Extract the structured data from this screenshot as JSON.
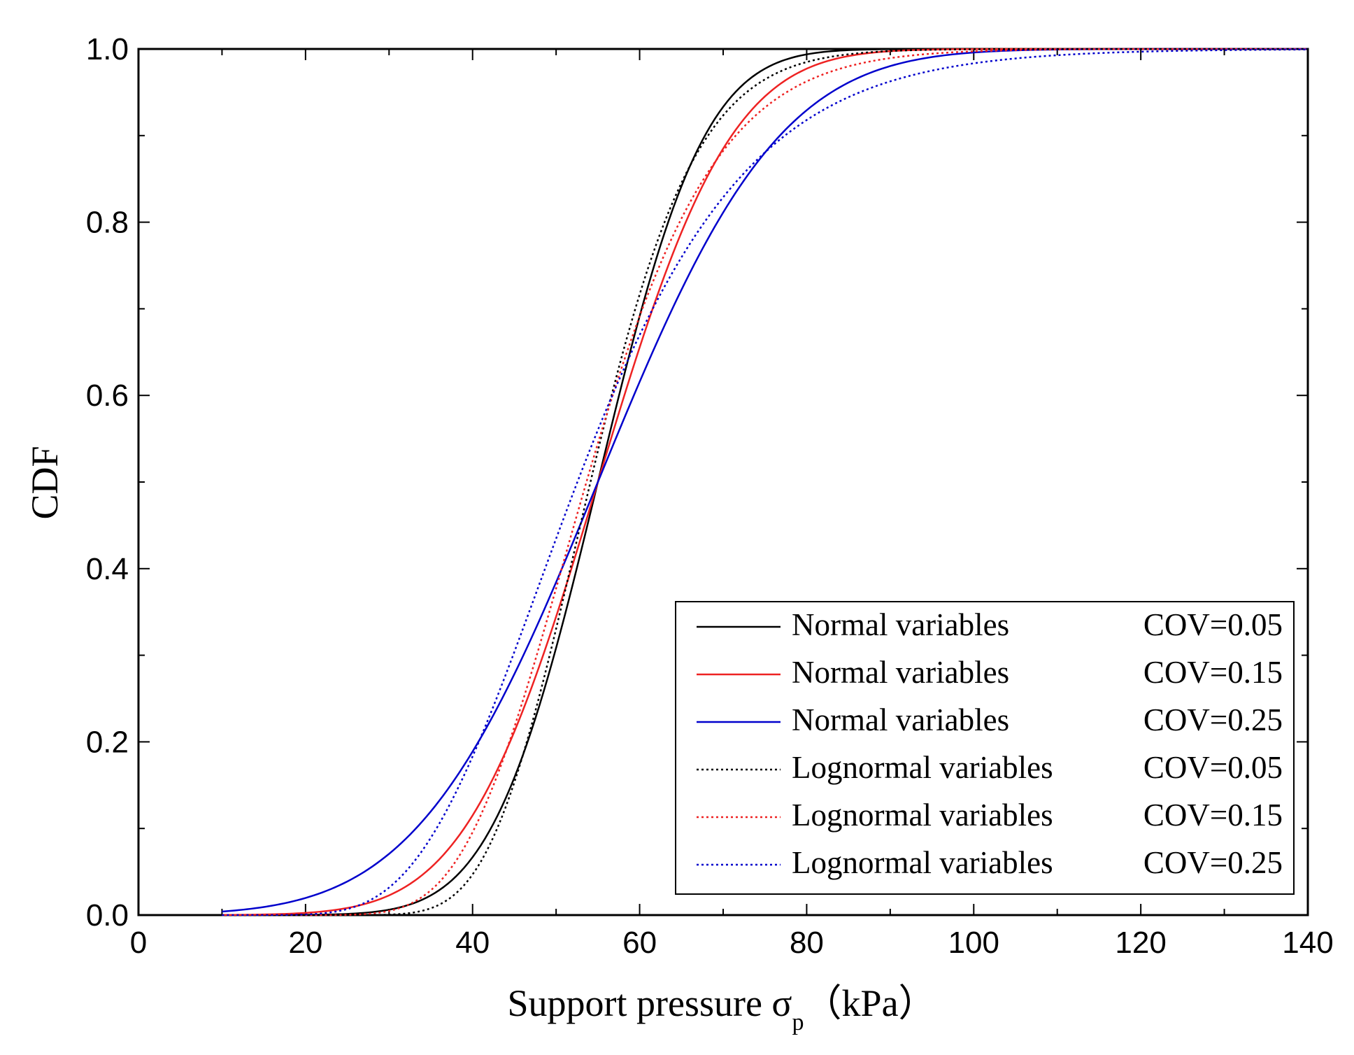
{
  "chart_data": {
    "type": "line",
    "xlabel": "Support pressure σ",
    "xlabel_subscript": "p",
    "xlabel_unit": "（kPa）",
    "ylabel": "CDF",
    "xlim": [
      0,
      140
    ],
    "ylim": [
      0,
      1.0
    ],
    "x_ticks": [
      "0",
      "20",
      "40",
      "60",
      "80",
      "100",
      "120",
      "140"
    ],
    "y_ticks": [
      "0.0",
      "0.2",
      "0.4",
      "0.6",
      "0.8",
      "1.0"
    ],
    "legend_position": "bottom-right",
    "series": [
      {
        "name": "Normal variables",
        "cov": "COV=0.05",
        "dist": "normal",
        "mean": 55,
        "sd": 10,
        "color": "#000000",
        "style": "solid",
        "x_range": [
          10,
          140
        ]
      },
      {
        "name": "Normal variables",
        "cov": "COV=0.15",
        "dist": "normal",
        "mean": 55,
        "sd": 12.5,
        "color": "#ee2222",
        "style": "solid",
        "x_range": [
          10,
          140
        ]
      },
      {
        "name": "Normal variables",
        "cov": "COV=0.25",
        "dist": "normal",
        "mean": 55,
        "sd": 17,
        "color": "#0000cc",
        "style": "solid",
        "x_range": [
          10,
          140
        ]
      },
      {
        "name": "Lognormal variables",
        "cov": "COV=0.05",
        "dist": "lognormal",
        "mean": 55,
        "sd": 10,
        "color": "#000000",
        "style": "dotted",
        "x_range": [
          10,
          140
        ]
      },
      {
        "name": "Lognormal variables",
        "cov": "COV=0.15",
        "dist": "lognormal",
        "mean": 55,
        "sd": 12.5,
        "color": "#ee2222",
        "style": "dotted",
        "x_range": [
          10,
          140
        ]
      },
      {
        "name": "Lognormal variables",
        "cov": "COV=0.25",
        "dist": "lognormal",
        "mean": 55,
        "sd": 17,
        "color": "#0000cc",
        "style": "dotted",
        "x_range": [
          10,
          140
        ]
      }
    ]
  }
}
